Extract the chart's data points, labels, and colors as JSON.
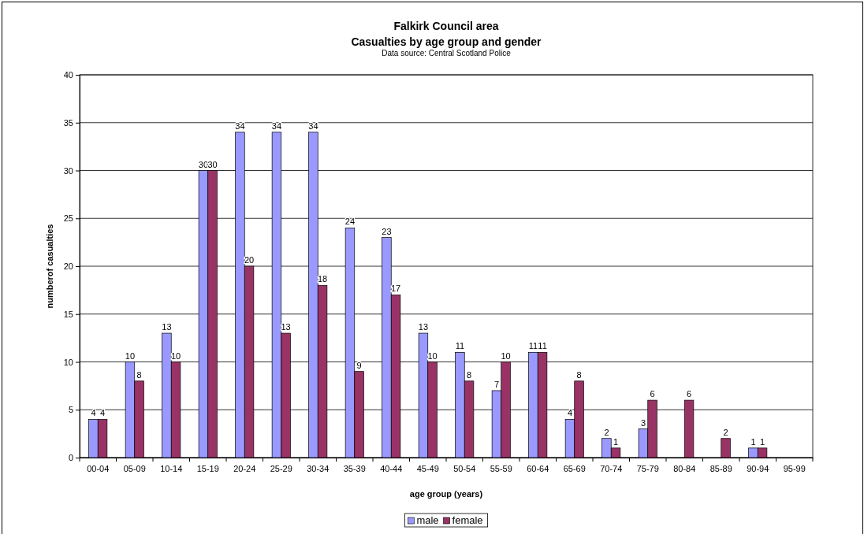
{
  "chart_data": {
    "type": "bar",
    "title": "Falkirk Council area",
    "subtitle": "Casualties by age group and gender",
    "annotations": [
      "Data source: Central Scotland Police"
    ],
    "xlabel": "age group (years)",
    "ylabel": "numberof casualties",
    "categories": [
      "00-04",
      "05-09",
      "10-14",
      "15-19",
      "20-24",
      "25-29",
      "30-34",
      "35-39",
      "40-44",
      "45-49",
      "50-54",
      "55-59",
      "60-64",
      "65-69",
      "70-74",
      "75-79",
      "80-84",
      "85-89",
      "90-94",
      "95-99"
    ],
    "series": [
      {
        "name": "male",
        "color": "#9999ff",
        "values": [
          4,
          10,
          13,
          30,
          34,
          34,
          34,
          24,
          23,
          13,
          11,
          7,
          11,
          4,
          2,
          3,
          null,
          null,
          1,
          null
        ]
      },
      {
        "name": "female",
        "color": "#993366",
        "values": [
          4,
          8,
          10,
          30,
          20,
          13,
          18,
          9,
          17,
          10,
          8,
          10,
          11,
          8,
          1,
          6,
          6,
          2,
          1,
          null
        ]
      }
    ],
    "ylim": [
      0,
      40
    ],
    "yticks": [
      0,
      5,
      10,
      15,
      20,
      25,
      30,
      35,
      40
    ],
    "grid": "y",
    "legend": "bottom",
    "data_labels": true
  }
}
